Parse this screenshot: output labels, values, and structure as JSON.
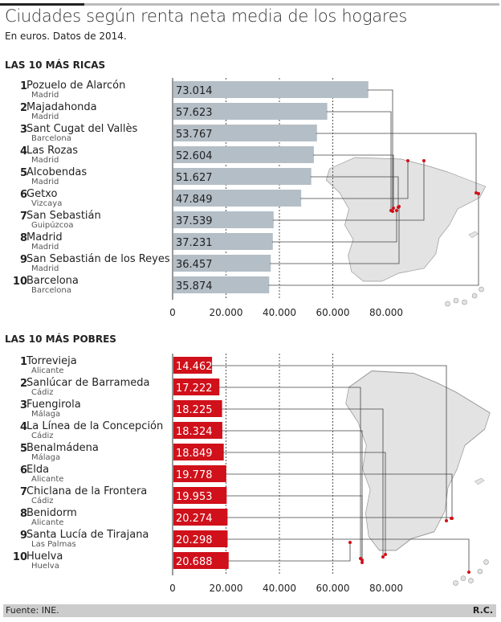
{
  "title": "Ciudades según renta neta media de los hogares",
  "subtitle": "En euros. Datos de 2014.",
  "source": "Fuente: INE.",
  "credit": "R.C.",
  "colors": {
    "rich": "#b4bec6",
    "poor": "#d0101a",
    "map": "#e3e3e3",
    "dot": "#d0101a"
  },
  "chart_data": [
    {
      "type": "bar",
      "title": "LAS 10 MÁS RICAS",
      "xlim": [
        0,
        80000
      ],
      "ticks": [
        "0",
        "20.000",
        "40.000",
        "60.000",
        "80.000"
      ],
      "items": [
        {
          "rank": "1",
          "name": "Pozuelo de Alarcón",
          "prov": "Madrid",
          "value": 73014,
          "label": "73.014"
        },
        {
          "rank": "2",
          "name": "Majadahonda",
          "prov": "Madrid",
          "value": 57623,
          "label": "57.623"
        },
        {
          "rank": "3",
          "name": "Sant Cugat del Vallès",
          "prov": "Barcelona",
          "value": 53767,
          "label": "53.767"
        },
        {
          "rank": "4",
          "name": "Las Rozas",
          "prov": "Madrid",
          "value": 52604,
          "label": "52.604"
        },
        {
          "rank": "5",
          "name": "Alcobendas",
          "prov": "Madrid",
          "value": 51627,
          "label": "51.627"
        },
        {
          "rank": "6",
          "name": "Getxo",
          "prov": "Vizcaya",
          "value": 47849,
          "label": "47.849"
        },
        {
          "rank": "7",
          "name": "San Sebastián",
          "prov": "Guipúzcoa",
          "value": 37539,
          "label": "37.539"
        },
        {
          "rank": "8",
          "name": "Madrid",
          "prov": "Madrid",
          "value": 37231,
          "label": "37.231"
        },
        {
          "rank": "9",
          "name": "San Sebastián de los Reyes",
          "prov": "Madrid",
          "value": 36457,
          "label": "36.457"
        },
        {
          "rank": "10",
          "name": "Barcelona",
          "prov": "Barcelona",
          "value": 35874,
          "label": "35.874"
        }
      ]
    },
    {
      "type": "bar",
      "title": "LAS 10 MÁS POBRES",
      "xlim": [
        0,
        80000
      ],
      "ticks": [
        "0",
        "20.000",
        "40.000",
        "60.000",
        "80.000"
      ],
      "items": [
        {
          "rank": "1",
          "name": "Torrevieja",
          "prov": "Alicante",
          "value": 14462,
          "label": "14.462"
        },
        {
          "rank": "2",
          "name": "Sanlúcar de Barrameda",
          "prov": "Cádiz",
          "value": 17222,
          "label": "17.222"
        },
        {
          "rank": "3",
          "name": "Fuengirola",
          "prov": "Málaga",
          "value": 18225,
          "label": "18.225"
        },
        {
          "rank": "4",
          "name": "La Línea de la Concepción",
          "prov": "Cádiz",
          "value": 18324,
          "label": "18.324"
        },
        {
          "rank": "5",
          "name": "Benalmádena",
          "prov": "Málaga",
          "value": 18849,
          "label": "18.849"
        },
        {
          "rank": "6",
          "name": "Elda",
          "prov": "Alicante",
          "value": 19778,
          "label": "19.778"
        },
        {
          "rank": "7",
          "name": "Chiclana de la Frontera",
          "prov": "Cádiz",
          "value": 19953,
          "label": "19.953"
        },
        {
          "rank": "8",
          "name": "Benidorm",
          "prov": "Alicante",
          "value": 20274,
          "label": "20.274"
        },
        {
          "rank": "9",
          "name": "Santa Lucía de Tirajana",
          "prov": "Las Palmas",
          "value": 20298,
          "label": "20.298"
        },
        {
          "rank": "10",
          "name": "Huelva",
          "prov": "Huelva",
          "value": 20688,
          "label": "20.688"
        }
      ]
    }
  ]
}
